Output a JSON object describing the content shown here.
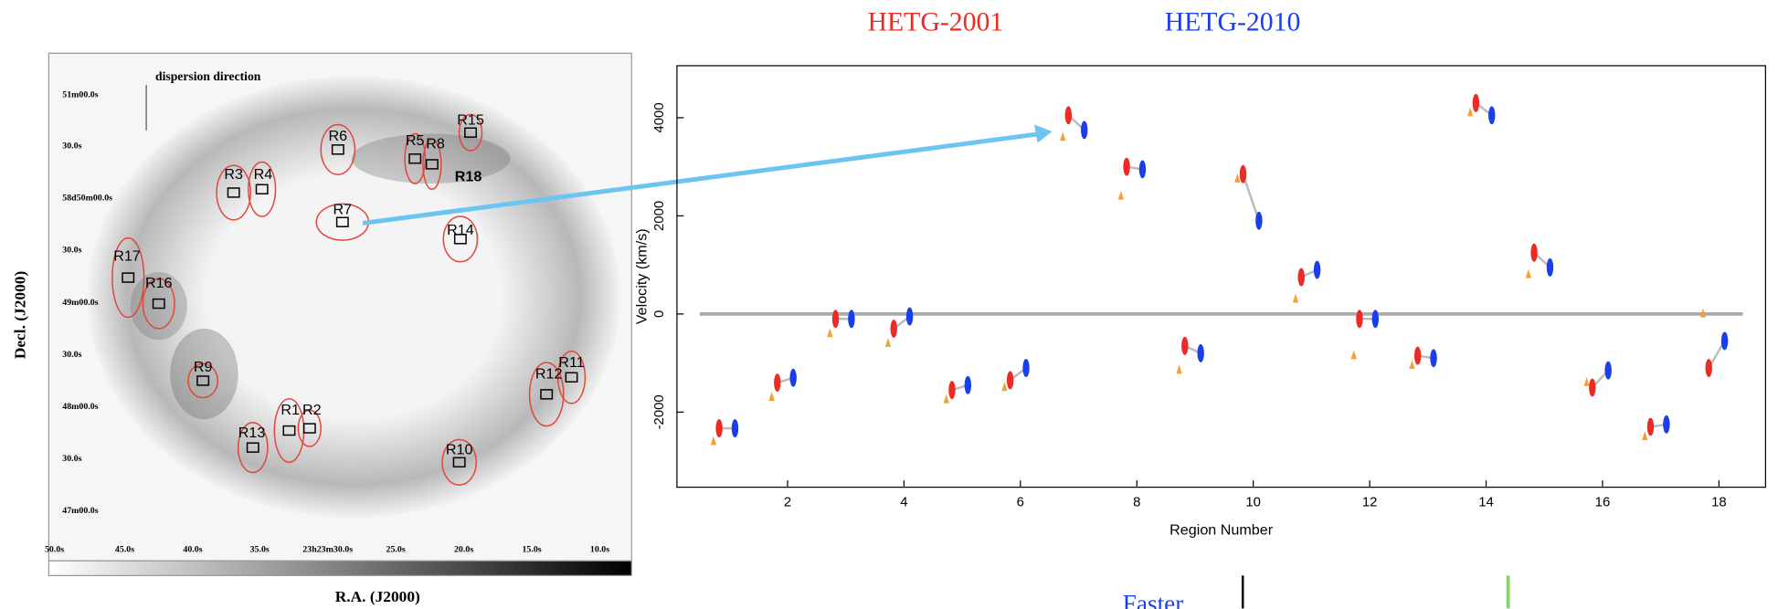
{
  "image_panel": {
    "caption": "dispersion direction",
    "y_label": "Decl. (J2000)",
    "x_label": "R.A. (J2000)",
    "dec_ticks": [
      "51m00.0s",
      "30.0s",
      "58d50m00.0s",
      "30.0s",
      "49m00.0s",
      "30.0s",
      "48m00.0s",
      "30.0s",
      "47m00.0s"
    ],
    "ra_ticks": [
      "50.0s",
      "45.0s",
      "40.0s",
      "35.0s",
      "23h23m30.0s",
      "25.0s",
      "20.0s",
      "15.0s",
      "10.0s"
    ],
    "regions": [
      "R1",
      "R2",
      "R3",
      "R4",
      "R5",
      "R6",
      "R7",
      "R8",
      "R9",
      "R10",
      "R11",
      "R12",
      "R13",
      "R14",
      "R15",
      "R16",
      "R17",
      "R18"
    ]
  },
  "footer_text": "Faster",
  "chart_data": {
    "type": "scatter",
    "x_label": "Region Number",
    "y_label": "Velocity (km/s)",
    "x": [
      1,
      2,
      3,
      4,
      5,
      6,
      7,
      8,
      9,
      10,
      11,
      12,
      13,
      14,
      15,
      16,
      17,
      18
    ],
    "series": [
      {
        "name": "HETG-2001",
        "color": "#ee2a24",
        "values": [
          -2330,
          -1400,
          -100,
          -300,
          -1550,
          -1350,
          4050,
          3000,
          -650,
          2850,
          750,
          -100,
          -850,
          4300,
          1250,
          -1500,
          -2300,
          -1100
        ]
      },
      {
        "name": "HETG-2010",
        "color": "#1a3ee8",
        "values": [
          -2330,
          -1300,
          -100,
          -50,
          -1450,
          -1100,
          3750,
          2950,
          -800,
          1900,
          900,
          -100,
          -900,
          4050,
          950,
          -1150,
          -2250,
          -550
        ]
      },
      {
        "color": "#f5a030",
        "values": [
          -2600,
          -1700,
          -400,
          -600,
          -1750,
          -1500,
          3600,
          2400,
          -1150,
          2750,
          300,
          -850,
          -1050,
          4100,
          800,
          -1400,
          -2500,
          0
        ]
      }
    ],
    "xlim": [
      0.1,
      18.8
    ],
    "ylim": [
      -3530,
      5060
    ],
    "xticks": [
      2,
      4,
      6,
      8,
      10,
      12,
      14,
      16,
      18
    ],
    "yticks": [
      -2000,
      0,
      2000,
      4000
    ]
  }
}
